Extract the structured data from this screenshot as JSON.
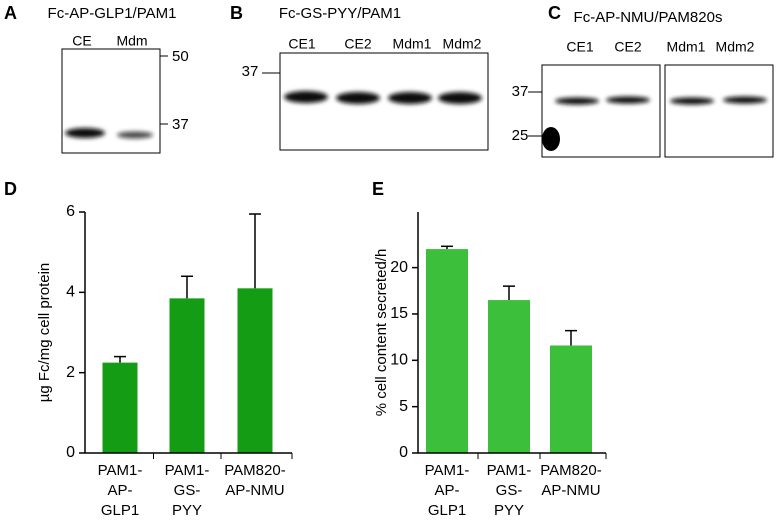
{
  "blots": [
    {
      "label": "A",
      "title": "Fc-AP-GLP1/PAM1",
      "lanes": [
        "CE",
        "Mdm"
      ],
      "markers": [
        50,
        37
      ]
    },
    {
      "label": "B",
      "title": "Fc-GS-PYY/PAM1",
      "lanes": [
        "CE1",
        "CE2",
        "Mdm1",
        "Mdm2"
      ],
      "markers": [
        37
      ]
    },
    {
      "label": "C",
      "title": "Fc-AP-NMU/PAM820s",
      "lanes": [
        "CE1",
        "CE2",
        "Mdm1",
        "Mdm2"
      ],
      "markers": [
        37,
        25
      ]
    }
  ],
  "chart_data": [
    {
      "type": "bar",
      "label": "D",
      "y_label": "µg Fc/mg cell protein",
      "categories": [
        [
          "PAM1-",
          "AP-",
          "GLP1"
        ],
        [
          "PAM1-",
          "GS-",
          "PYY"
        ],
        [
          "PAM820-",
          "AP-NMU"
        ]
      ],
      "values": [
        2.25,
        3.85,
        4.1
      ],
      "errors": [
        0.15,
        0.55,
        1.85
      ],
      "color": "#159c15",
      "ylim": [
        0,
        6
      ],
      "yticks": [
        0,
        2,
        4,
        6
      ]
    },
    {
      "type": "bar",
      "label": "E",
      "y_label": "% cell content secreted/h",
      "categories": [
        [
          "PAM1-",
          "AP-",
          "GLP1"
        ],
        [
          "PAM1-",
          "GS-",
          "PYY"
        ],
        [
          "PAM820-",
          "AP-NMU"
        ]
      ],
      "values": [
        22,
        16.5,
        11.6
      ],
      "errors": [
        0.3,
        1.5,
        1.6
      ],
      "color": "#3cc03c",
      "ylim": [
        0,
        26
      ],
      "yticks": [
        0,
        5,
        10,
        15,
        20
      ]
    }
  ]
}
